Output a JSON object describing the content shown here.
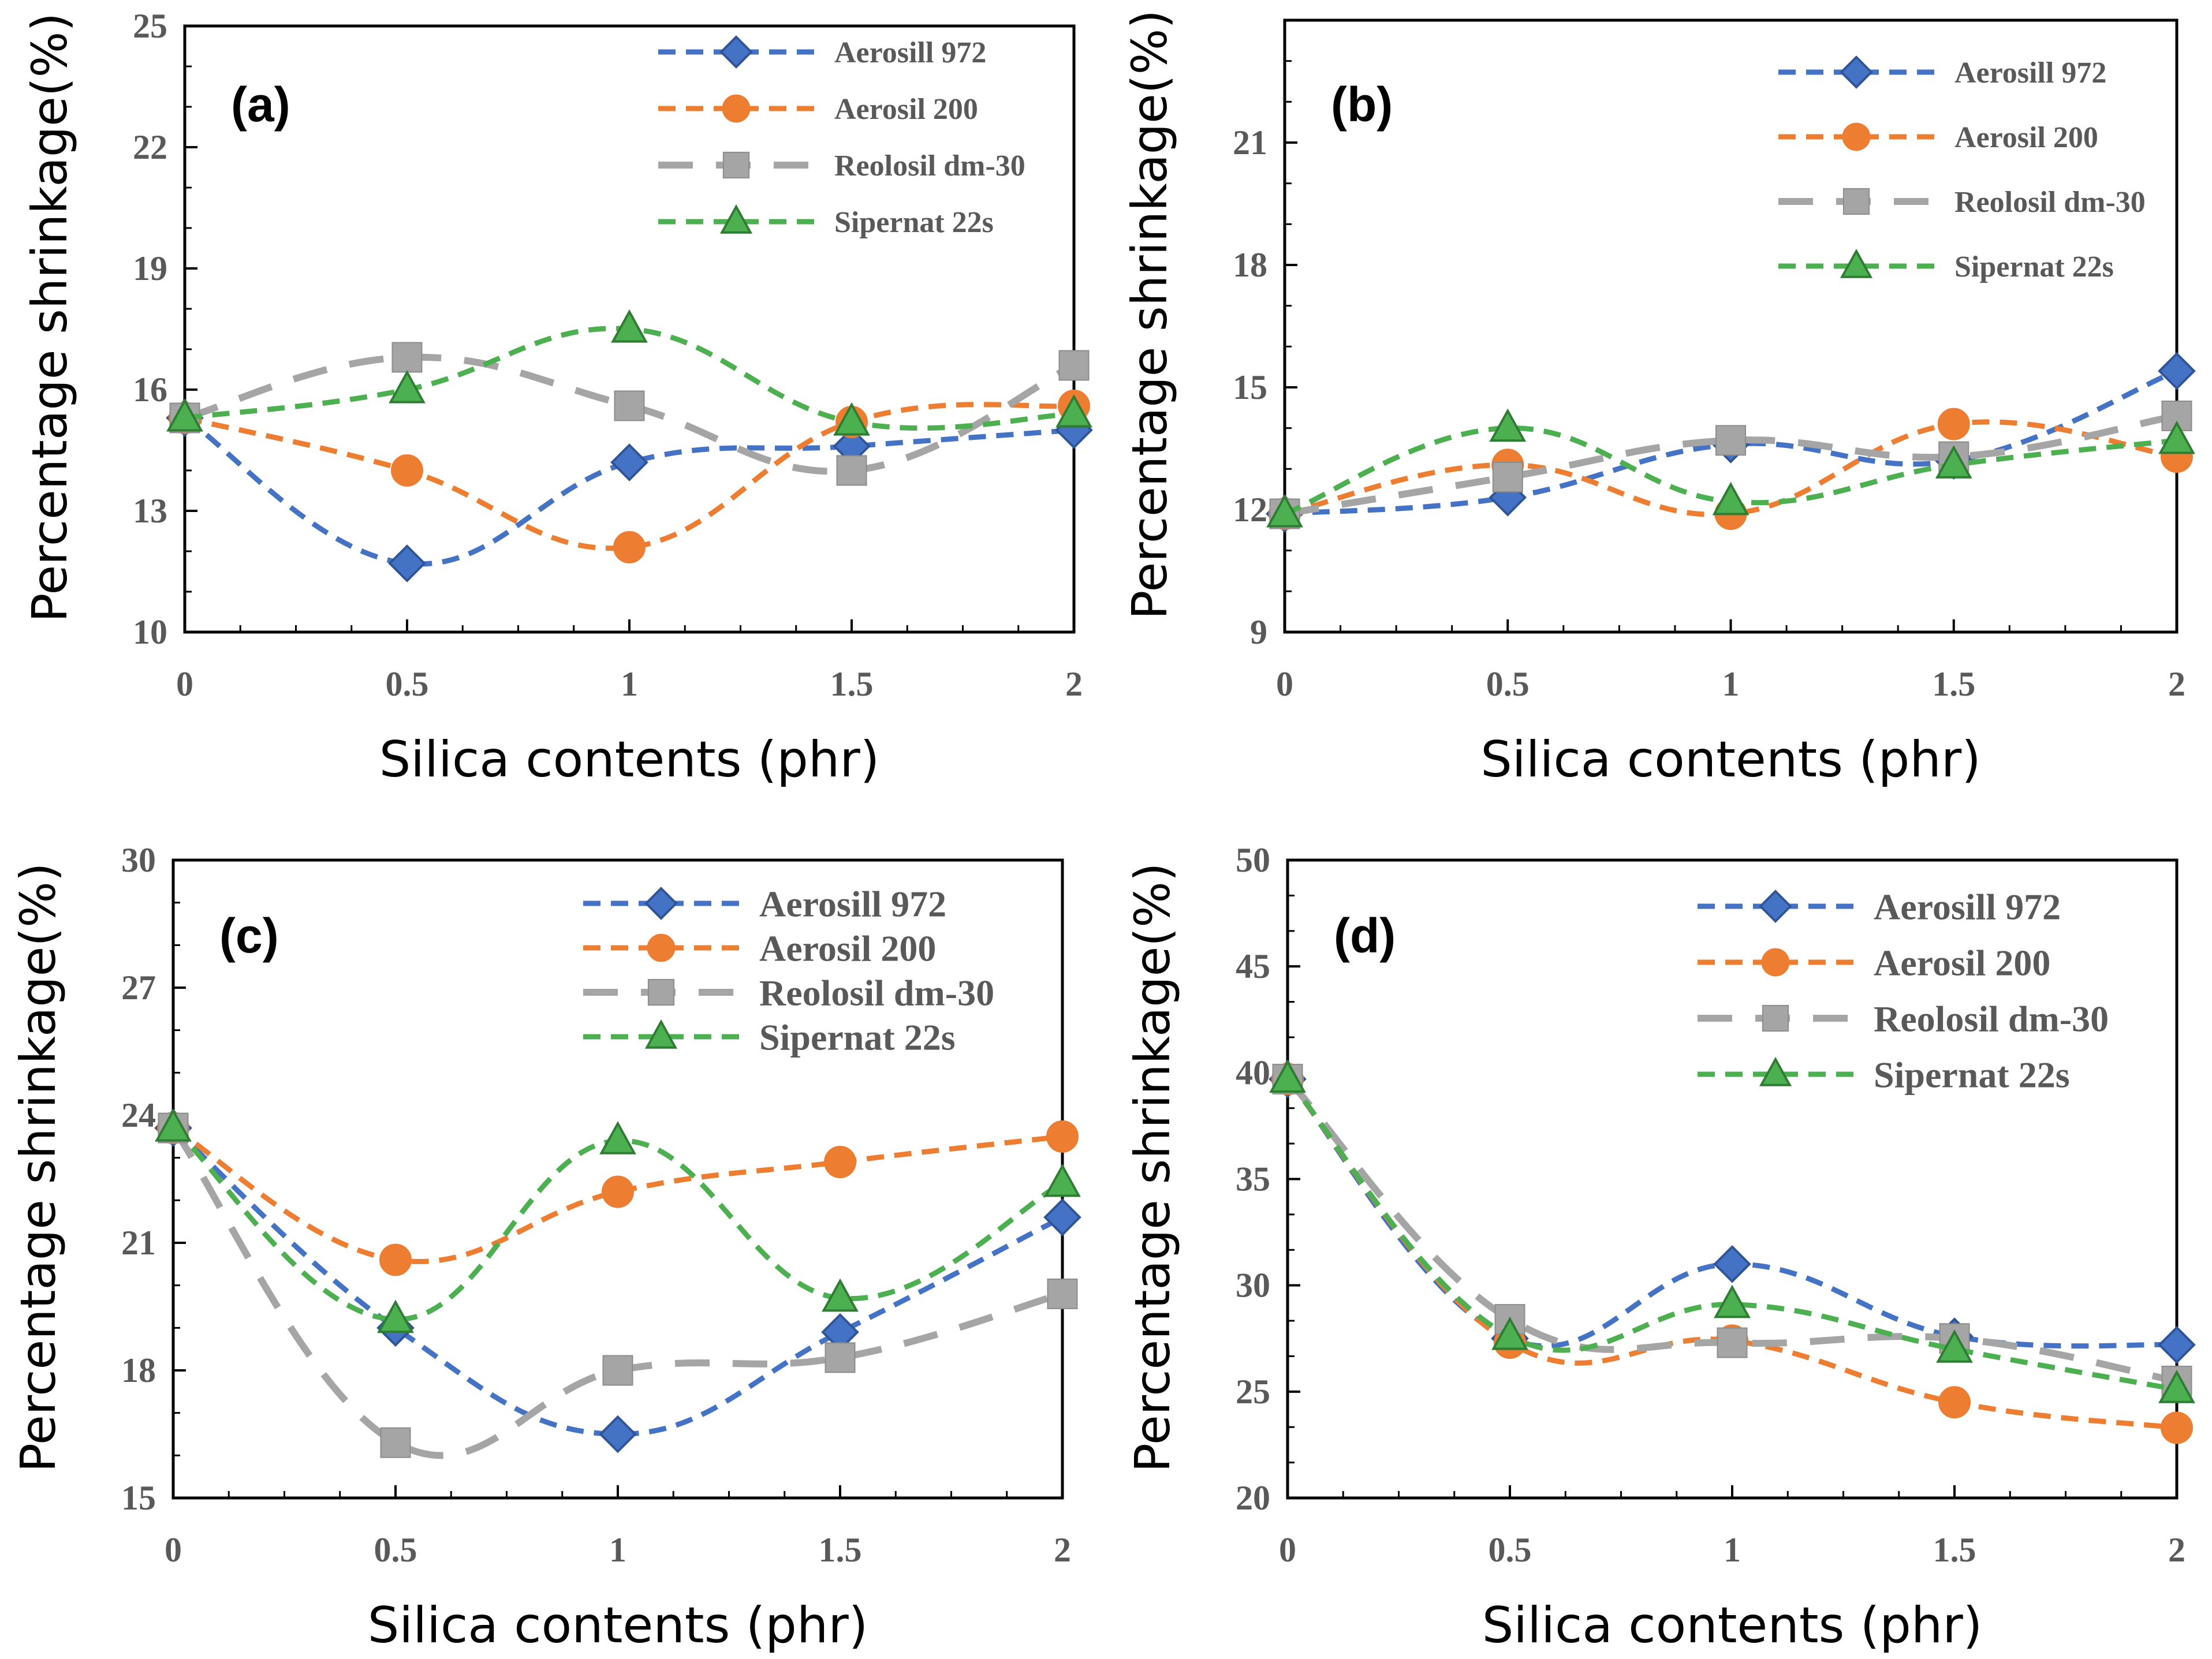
{
  "figure_title": "",
  "chart_data": [
    {
      "type": "line",
      "panel_label": "(a)",
      "categories": [
        "0",
        "0.5",
        "1",
        "1.5",
        "2"
      ],
      "x": [
        0,
        0.5,
        1,
        1.5,
        2
      ],
      "xlabel": "Silica contents (phr)",
      "ylabel": "Percentage shrinkage(%)",
      "xlim": [
        0,
        2
      ],
      "ylim": [
        10,
        25
      ],
      "yticks": [
        10,
        13,
        16,
        19,
        22,
        25
      ],
      "yticklabels": [
        "10",
        "13",
        "16",
        "19",
        "22",
        "25"
      ],
      "legend_position": "top-right",
      "series": [
        {
          "name": "Aerosill 972",
          "marker": "diamond",
          "color": "#4472C4",
          "values": [
            15.3,
            11.7,
            14.2,
            14.6,
            15.0
          ]
        },
        {
          "name": "Aerosil 200",
          "marker": "circle",
          "color": "#ED7D31",
          "values": [
            15.3,
            14.0,
            12.1,
            15.2,
            15.6
          ]
        },
        {
          "name": "Reolosil dm-30",
          "marker": "square",
          "color": "#A5A5A5",
          "values": [
            15.3,
            16.8,
            15.6,
            14.0,
            16.6
          ]
        },
        {
          "name": "Sipernat 22s",
          "marker": "triangle",
          "color": "#4CAF50",
          "values": [
            15.3,
            16.0,
            17.5,
            15.2,
            15.4
          ]
        }
      ]
    },
    {
      "type": "line",
      "panel_label": "(b)",
      "categories": [
        "0",
        "0.5",
        "1",
        "1.5",
        "2"
      ],
      "x": [
        0,
        0.5,
        1,
        1.5,
        2
      ],
      "xlabel": "Silica contents (phr)",
      "ylabel": "Percentage shrinkage(%)",
      "xlim": [
        0,
        2
      ],
      "ylim": [
        9,
        24
      ],
      "yticks": [
        9,
        12,
        15,
        18,
        21,
        24
      ],
      "yticklabels": [
        "9",
        "12",
        "15",
        "18",
        "21",
        ""
      ],
      "legend_position": "top-right",
      "series": [
        {
          "name": "Aerosill 972",
          "marker": "diamond",
          "color": "#4472C4",
          "values": [
            11.9,
            12.3,
            13.6,
            13.2,
            15.4
          ]
        },
        {
          "name": "Aerosil 200",
          "marker": "circle",
          "color": "#ED7D31",
          "values": [
            11.9,
            13.1,
            11.9,
            14.1,
            13.3
          ]
        },
        {
          "name": "Reolosil dm-30",
          "marker": "square",
          "color": "#A5A5A5",
          "values": [
            11.9,
            12.8,
            13.7,
            13.3,
            14.3
          ]
        },
        {
          "name": "Sipernat 22s",
          "marker": "triangle",
          "color": "#4CAF50",
          "values": [
            11.9,
            14.0,
            12.2,
            13.1,
            13.7
          ]
        }
      ]
    },
    {
      "type": "line",
      "panel_label": "(c)",
      "categories": [
        "0",
        "0.5",
        "1",
        "1.5",
        "2"
      ],
      "x": [
        0,
        0.5,
        1,
        1.5,
        2
      ],
      "xlabel": "Silica contents (phr)",
      "ylabel": "Percentage shrinkage(%)",
      "xlim": [
        0,
        2
      ],
      "ylim": [
        15,
        30
      ],
      "yticks": [
        15,
        18,
        21,
        24,
        27,
        30
      ],
      "yticklabels": [
        "15",
        "18",
        "21",
        "24",
        "27",
        "30"
      ],
      "legend_position": "top-right",
      "series": [
        {
          "name": "Aerosill 972",
          "marker": "diamond",
          "color": "#4472C4",
          "values": [
            23.7,
            19.0,
            16.5,
            18.9,
            21.6
          ]
        },
        {
          "name": "Aerosil 200",
          "marker": "circle",
          "color": "#ED7D31",
          "values": [
            23.7,
            20.6,
            22.2,
            22.9,
            23.5
          ]
        },
        {
          "name": "Reolosil dm-30",
          "marker": "square",
          "color": "#A5A5A5",
          "values": [
            23.7,
            16.3,
            18.0,
            18.3,
            19.8
          ]
        },
        {
          "name": "Sipernat 22s",
          "marker": "triangle",
          "color": "#4CAF50",
          "values": [
            23.7,
            19.2,
            23.4,
            19.7,
            22.4
          ]
        }
      ]
    },
    {
      "type": "line",
      "panel_label": "(d)",
      "categories": [
        "0",
        "0.5",
        "1",
        "1.5",
        "2"
      ],
      "x": [
        0,
        0.5,
        1,
        1.5,
        2
      ],
      "xlabel": "Silica contents (phr)",
      "ylabel": "Percentage shrinkage(%)",
      "xlim": [
        0,
        2
      ],
      "ylim": [
        20,
        50
      ],
      "yticks": [
        20,
        25,
        30,
        35,
        40,
        45,
        50
      ],
      "yticklabels": [
        "20",
        "25",
        "30",
        "35",
        "40",
        "45",
        "50"
      ],
      "legend_position": "top-right",
      "series": [
        {
          "name": "Aerosill 972",
          "marker": "diamond",
          "color": "#4472C4",
          "values": [
            39.7,
            27.5,
            31.0,
            27.6,
            27.2
          ]
        },
        {
          "name": "Aerosil 200",
          "marker": "circle",
          "color": "#ED7D31",
          "values": [
            39.7,
            27.3,
            27.4,
            24.5,
            23.3
          ]
        },
        {
          "name": "Reolosil dm-30",
          "marker": "square",
          "color": "#A5A5A5",
          "values": [
            39.7,
            28.4,
            27.3,
            27.5,
            25.5
          ]
        },
        {
          "name": "Sipernat 22s",
          "marker": "triangle",
          "color": "#4CAF50",
          "values": [
            39.7,
            27.6,
            29.1,
            27.0,
            25.1
          ]
        }
      ]
    }
  ]
}
